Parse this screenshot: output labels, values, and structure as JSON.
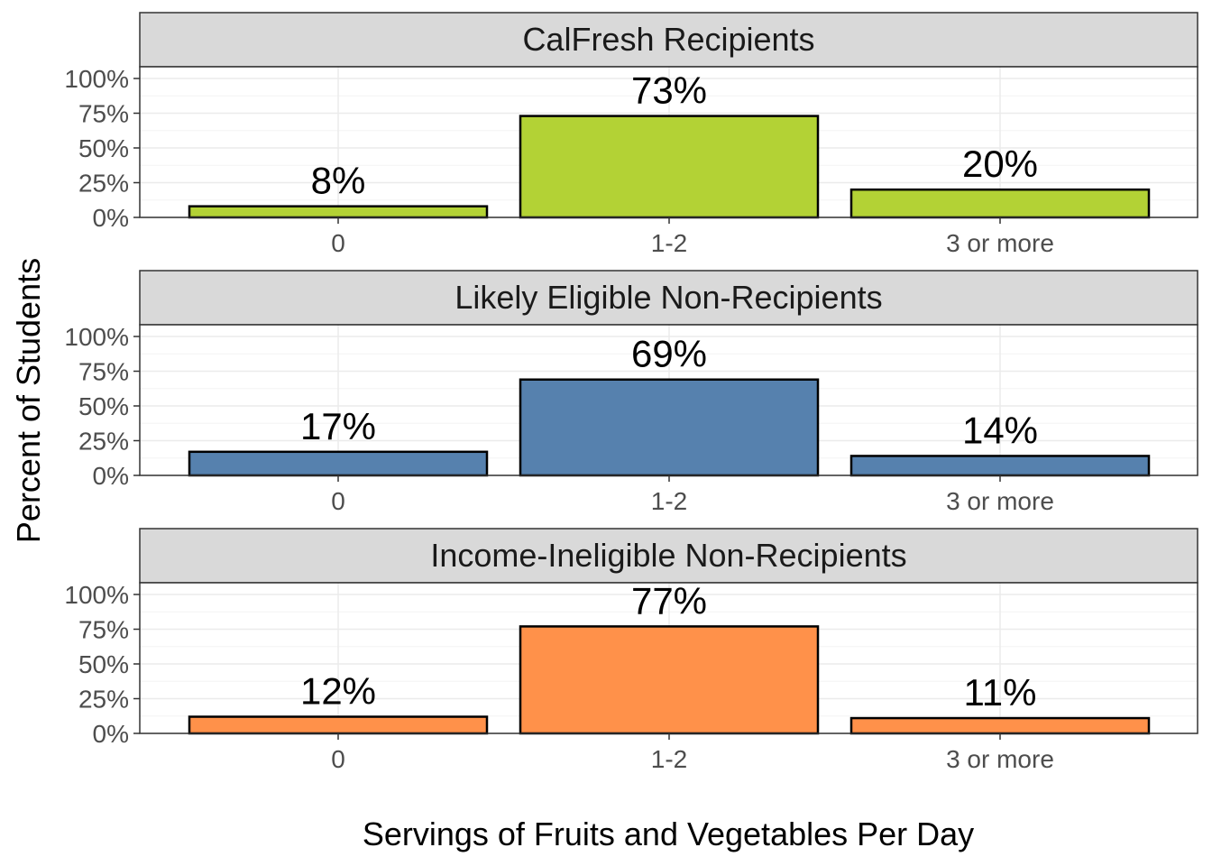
{
  "chart_data": {
    "type": "bar",
    "categories": [
      "0",
      "1-2",
      "3 or more"
    ],
    "xlabel": "Servings of Fruits and Vegetables Per Day",
    "ylabel": "Percent of Students",
    "ylim": [
      0,
      1
    ],
    "yticks": [
      0,
      0.25,
      0.5,
      0.75,
      1
    ],
    "ytick_labels": [
      "0%",
      "25%",
      "50%",
      "75%",
      "100%"
    ],
    "grid": true,
    "legend": "none",
    "panels": [
      {
        "title": "CalFresh Recipients",
        "color": "#B3D235",
        "values": [
          0.08,
          0.73,
          0.2
        ],
        "labels": [
          "8%",
          "73%",
          "20%"
        ]
      },
      {
        "title": "Likely Eligible Non-Recipients",
        "color": "#5681AE",
        "values": [
          0.17,
          0.69,
          0.14
        ],
        "labels": [
          "17%",
          "69%",
          "14%"
        ]
      },
      {
        "title": "Income-Ineligible Non-Recipients",
        "color": "#FF914A",
        "values": [
          0.12,
          0.77,
          0.11
        ],
        "labels": [
          "12%",
          "77%",
          "11%"
        ]
      }
    ]
  }
}
